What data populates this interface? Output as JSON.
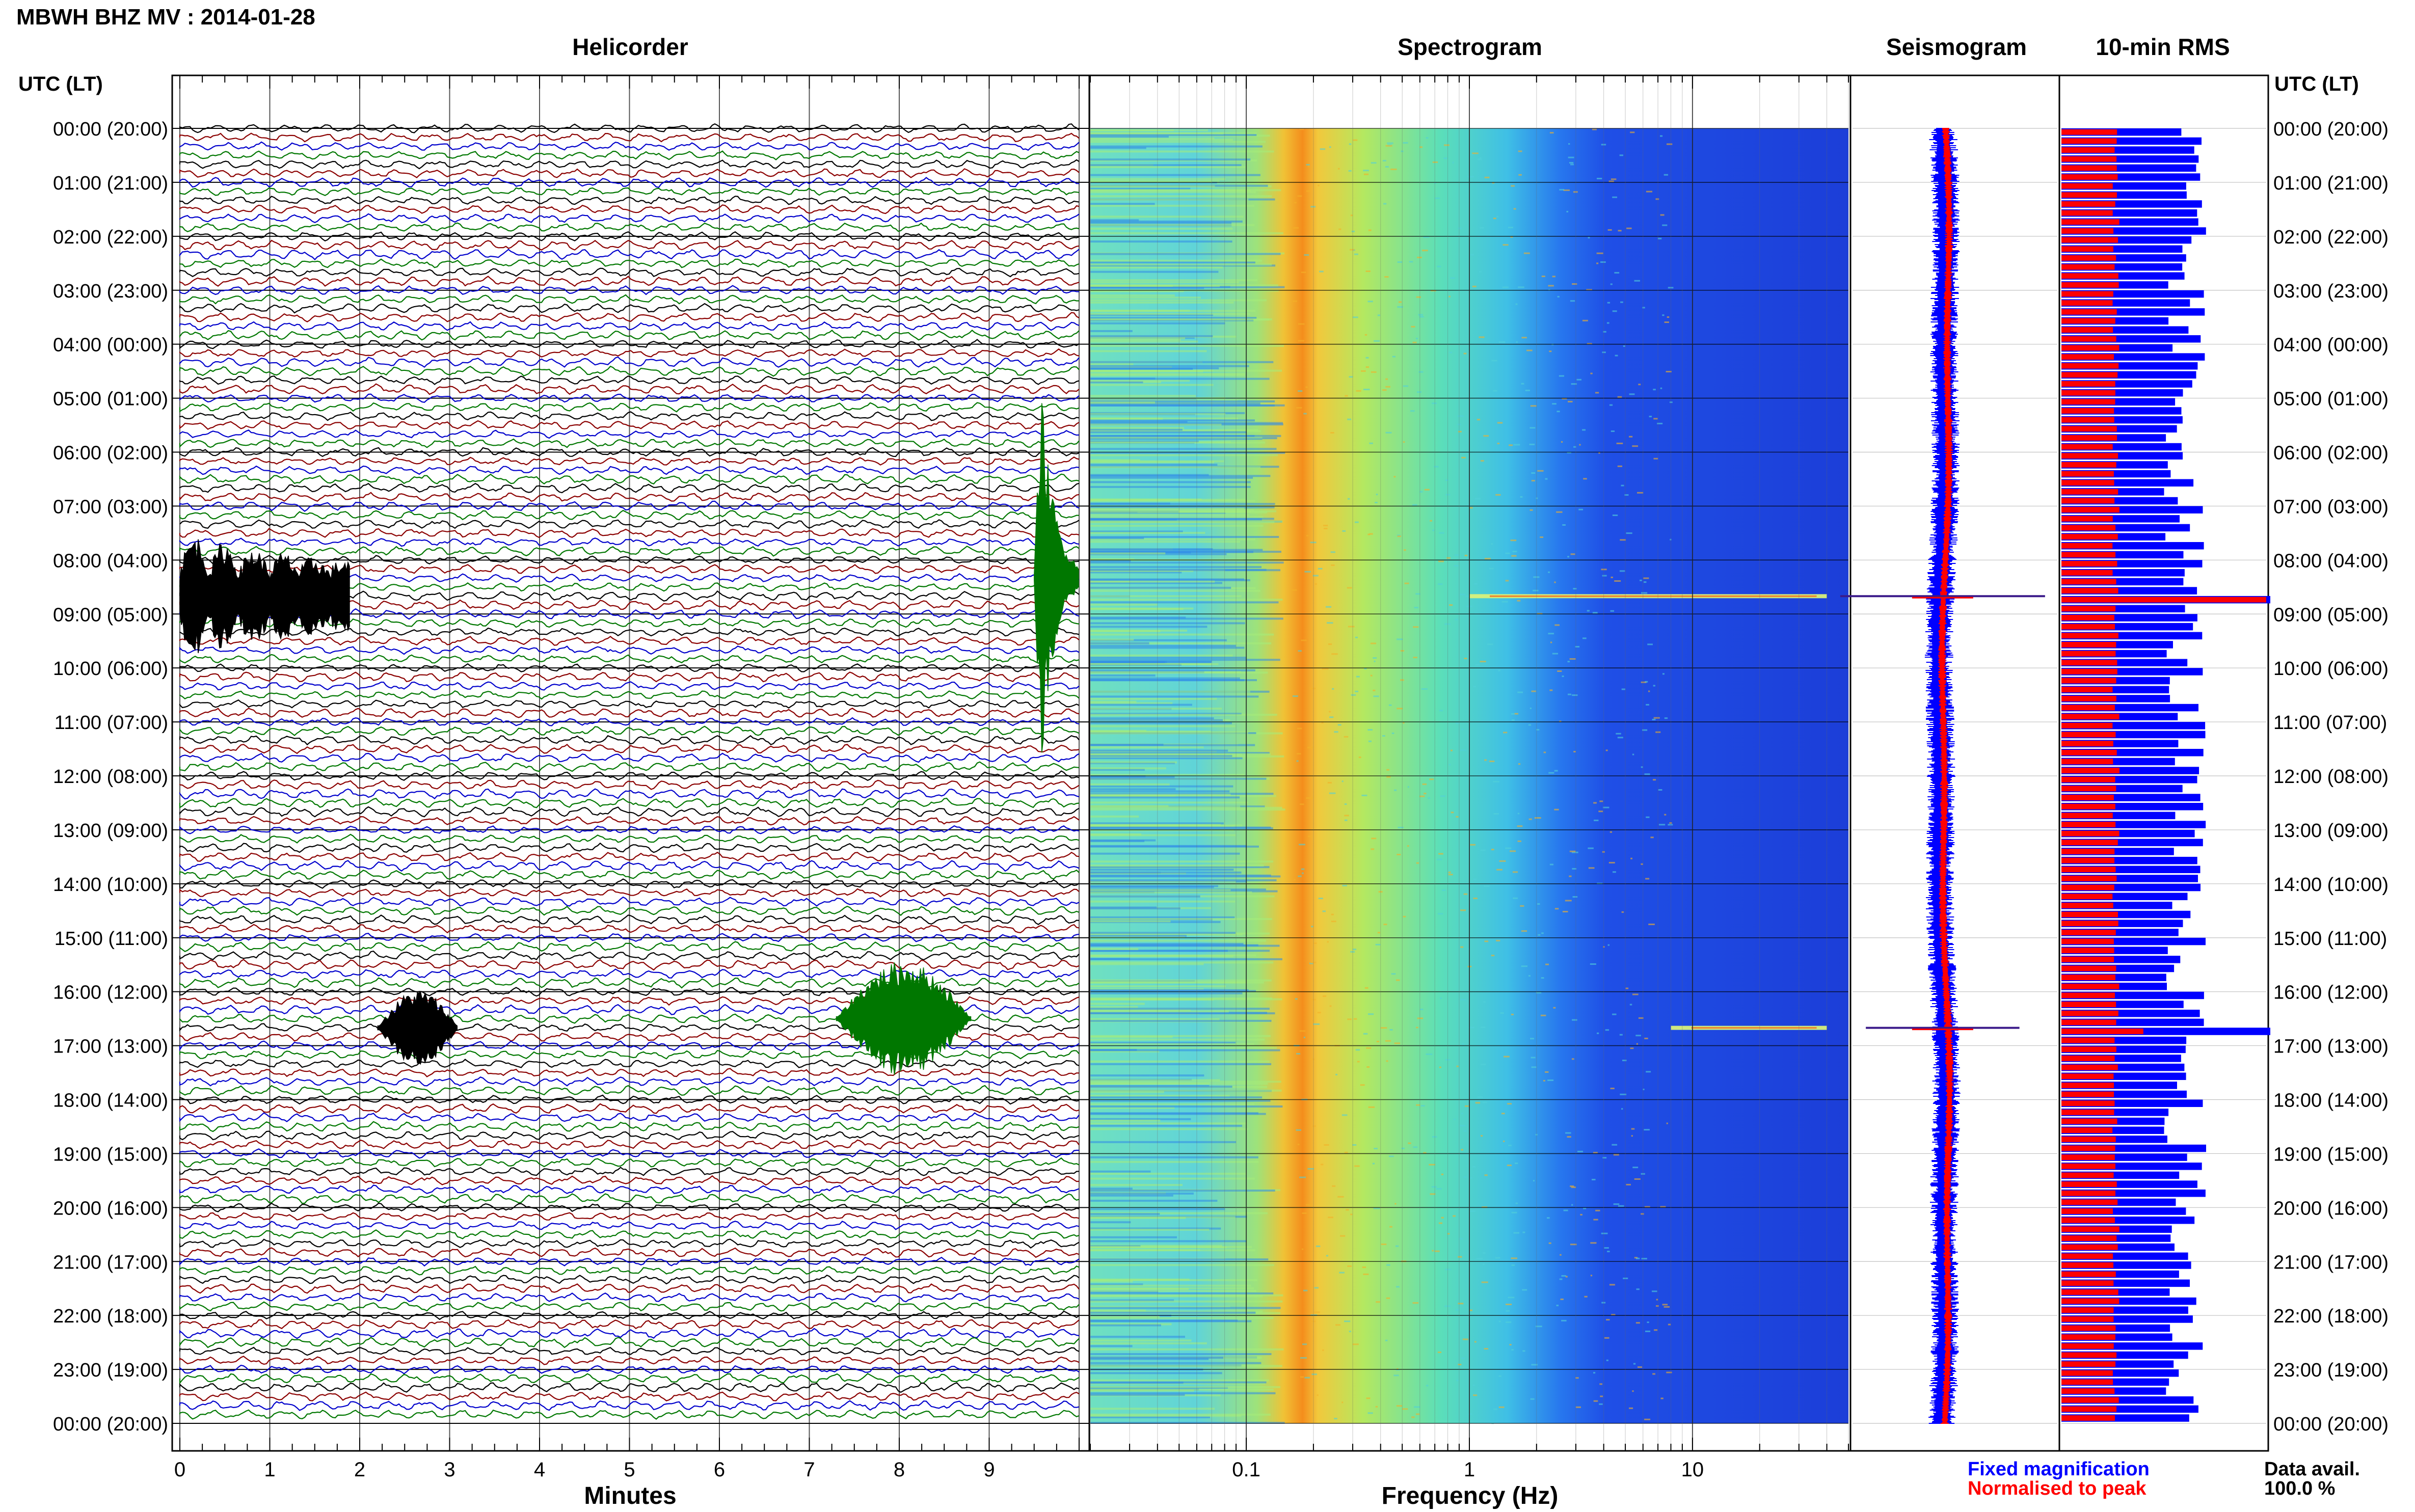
{
  "header": {
    "station_title": "MBWH BHZ MV : 2014-01-28",
    "time_axis_label_left": "UTC (LT)",
    "time_axis_label_right": "UTC (LT)"
  },
  "colors": {
    "helicorder_traces": [
      "#000000",
      "#8b0000",
      "#0000cc",
      "#007700"
    ],
    "fixed_magnification": "#0000ff",
    "normalised_to_peak": "#ff0000"
  },
  "chart_data": [
    {
      "type": "line",
      "title": "Helicorder",
      "xlabel": "Minutes",
      "x_ticks": [
        "0",
        "1",
        "2",
        "3",
        "4",
        "5",
        "6",
        "7",
        "8",
        "9"
      ],
      "xlim": [
        0,
        10
      ],
      "lines_per_hour": 6,
      "y_ticks": [
        "00:00 (20:00)",
        "01:00 (21:00)",
        "02:00 (22:00)",
        "03:00 (23:00)",
        "04:00 (00:00)",
        "05:00 (01:00)",
        "06:00 (02:00)",
        "07:00 (03:00)",
        "08:00 (04:00)",
        "09:00 (05:00)",
        "10:00 (06:00)",
        "11:00 (07:00)",
        "12:00 (08:00)",
        "13:00 (09:00)",
        "14:00 (10:00)",
        "15:00 (11:00)",
        "16:00 (12:00)",
        "17:00 (13:00)",
        "18:00 (14:00)",
        "19:00 (15:00)",
        "20:00 (16:00)",
        "21:00 (17:00)",
        "22:00 (18:00)",
        "23:00 (19:00)",
        "00:00 (20:00)"
      ],
      "events": [
        {
          "hour": 8.33,
          "start_min": 9.5,
          "end_min": 10.0,
          "peak": 1.0
        },
        {
          "hour": 8.67,
          "start_min": 0.0,
          "end_min": 1.9,
          "peak": 0.35
        },
        {
          "hour": 16.5,
          "start_min": 7.3,
          "end_min": 8.8,
          "peak": 0.3
        },
        {
          "hour": 16.67,
          "start_min": 2.2,
          "end_min": 3.1,
          "peak": 0.2
        }
      ]
    },
    {
      "type": "heatmap",
      "title": "Spectrogram",
      "xlabel": "Frequency (Hz)",
      "x_scale": "log",
      "xlim": [
        0.02,
        50
      ],
      "x_ticks": [
        "0.1",
        "1",
        "10"
      ],
      "peak_band_hz": [
        0.15,
        0.3
      ],
      "events": [
        {
          "hour": 8.67,
          "min_hz": 1,
          "max_hz": 40
        },
        {
          "hour": 16.67,
          "min_hz": 8,
          "max_hz": 40
        }
      ]
    },
    {
      "type": "line",
      "title": "Seismogram",
      "events": [
        {
          "hour": 8.67,
          "amplitude": 1.0
        },
        {
          "hour": 16.67,
          "amplitude": 0.75
        }
      ]
    },
    {
      "type": "bar",
      "title": "10-min RMS",
      "events": [
        {
          "hour": 8.67,
          "fixed": 1.0,
          "normalised": 1.0
        },
        {
          "hour": 16.67,
          "fixed": 1.0,
          "normalised": 0.4
        }
      ],
      "legend": [
        "Fixed magnification",
        "Normalised to peak"
      ]
    }
  ],
  "data_availability": {
    "label": "Data avail.",
    "value": "100.0 %"
  }
}
